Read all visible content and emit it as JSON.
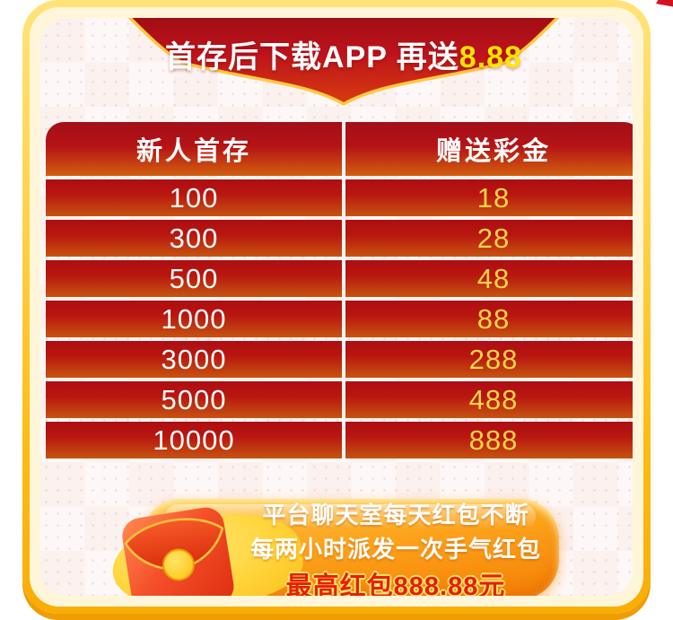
{
  "top_banner": {
    "title_prefix": "首存后下载APP 再送",
    "title_highlight": "8.88"
  },
  "table": {
    "headers": [
      "新人首存",
      "赠送彩金"
    ],
    "rows": [
      [
        "100",
        "18"
      ],
      [
        "300",
        "28"
      ],
      [
        "500",
        "48"
      ],
      [
        "1000",
        "88"
      ],
      [
        "3000",
        "288"
      ],
      [
        "5000",
        "488"
      ],
      [
        "10000",
        "888"
      ]
    ]
  },
  "bottom_banner": {
    "line1": "平台聊天室每天红包不断",
    "line2": "每两小时派发一次手气红包",
    "line3": "最高红包888.88元"
  },
  "icons": {
    "red_envelope": "red-envelope-icon"
  },
  "colors": {
    "frame_gold": "#fdbd16",
    "card_background": "#fbf1ee",
    "ribbon_red": "#bb1119",
    "row_red_top": "#ad0e13",
    "row_red_bottom": "#c65410",
    "highlight_yellow": "#ffe400",
    "bonus_yellow": "#ffd648",
    "pill_orange": "#fca41c",
    "max_red": "#e71f06"
  }
}
